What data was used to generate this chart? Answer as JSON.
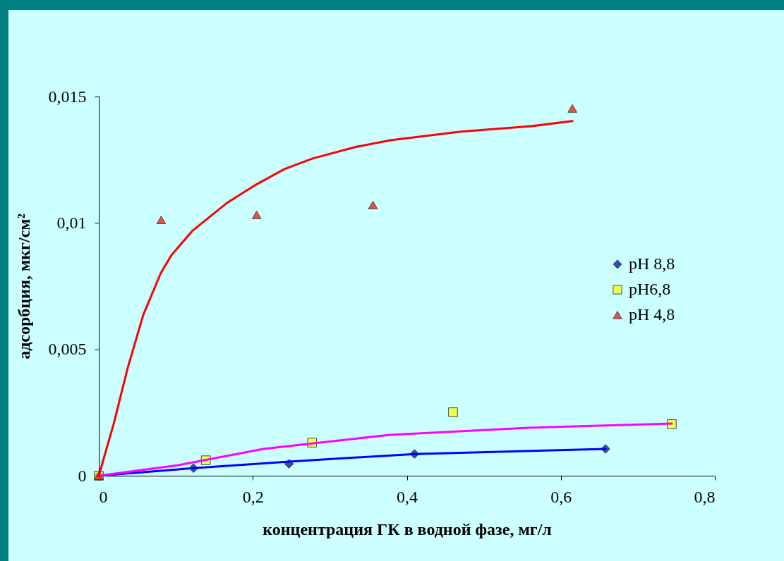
{
  "chart_data": {
    "type": "scatter",
    "xlabel": "концентрация ГК в водной фазе, мг/л",
    "ylabel": "адсорбция, мкг/см²",
    "xlim": [
      0,
      0.8
    ],
    "ylim": [
      0,
      0.015
    ],
    "xticks": [
      0,
      {
        "value": 0.2,
        "label": "0,2"
      },
      {
        "value": 0.4,
        "label": "0,4"
      },
      {
        "value": 0.6,
        "label": "0,6"
      },
      {
        "value": 0.8,
        "label": "0,8"
      }
    ],
    "yticks": [
      0,
      {
        "value": 0.005,
        "label": "0,005"
      },
      {
        "value": 0.01,
        "label": "0,01"
      },
      {
        "value": 0.015,
        "label": "0,015"
      }
    ],
    "grid": false,
    "legend": "right",
    "series": [
      {
        "name": "pH 8,8",
        "color": "#000080",
        "marker": "diamond",
        "x": [
          0,
          0.123,
          0.247,
          0.41,
          0.658
        ],
        "values": [
          0,
          0.0003,
          0.00047,
          0.00086,
          0.00106
        ]
      },
      {
        "name": "pH6,8",
        "color": "#ffff00",
        "marker": "square",
        "x": [
          0,
          0.139,
          0.277,
          0.46,
          0.744
        ],
        "values": [
          0,
          0.00061,
          0.00131,
          0.00251,
          0.00204
        ]
      },
      {
        "name": "pH 4,8",
        "color": "#ff0000",
        "marker": "triangle",
        "x": [
          0,
          0.081,
          0.205,
          0.356,
          0.615
        ],
        "values": [
          0,
          0.01012,
          0.01032,
          0.01071,
          0.01453
        ]
      },
      {
        "type": "line",
        "color": "#0000ff",
        "x": [
          0,
          0.123,
          0.247,
          0.41,
          0.658
        ],
        "values": [
          0,
          0.0003,
          0.00056,
          0.00086,
          0.00106
        ]
      },
      {
        "type": "line",
        "color": "#ff00ff",
        "x": [
          0,
          0.1036,
          0.2136,
          0.2686,
          0.3785,
          0.5619,
          0.744
        ],
        "values": [
          0,
          0.00042,
          0.00106,
          0.00125,
          0.00162,
          0.0019,
          0.00206
        ]
      },
      {
        "type": "line",
        "color": "#ff0000",
        "x": [
          0,
          0.0192,
          0.0376,
          0.0577,
          0.0807,
          0.0944,
          0.1219,
          0.1677,
          0.2044,
          0.2411,
          0.2777,
          0.3327,
          0.3785,
          0.4702,
          0.5619,
          0.615
        ],
        "values": [
          0,
          0.00204,
          0.00427,
          0.00636,
          0.00803,
          0.00873,
          0.0097,
          0.01082,
          0.01152,
          0.01213,
          0.01255,
          0.013,
          0.01327,
          0.01361,
          0.01383,
          0.01403
        ]
      }
    ]
  }
}
